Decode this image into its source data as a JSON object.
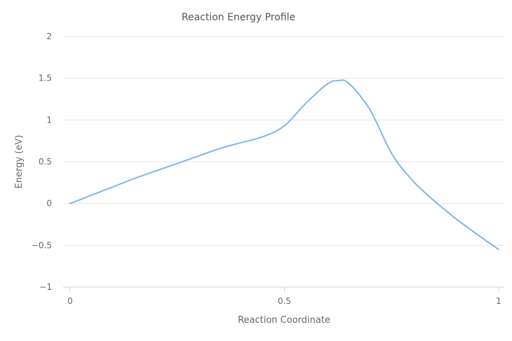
{
  "chart_data": {
    "type": "line",
    "title": "Reaction Energy Profile",
    "xlabel": "Reaction Coordinate",
    "ylabel": "Energy (eV)",
    "xlim": [
      0,
      1
    ],
    "ylim": [
      -1,
      2
    ],
    "x_ticks": [
      {
        "value": 0,
        "label": "0"
      },
      {
        "value": 0.5,
        "label": "0.5"
      },
      {
        "value": 1,
        "label": "1"
      }
    ],
    "y_ticks": [
      {
        "value": -1,
        "label": "−1"
      },
      {
        "value": -0.5,
        "label": "−0.5"
      },
      {
        "value": 0,
        "label": "0"
      },
      {
        "value": 0.5,
        "label": "0.5"
      },
      {
        "value": 1,
        "label": "1"
      },
      {
        "value": 1.5,
        "label": "1.5"
      },
      {
        "value": 2,
        "label": "2"
      }
    ],
    "grid": true,
    "legend": "none",
    "series": [
      {
        "color": "#7cb5ec",
        "x": [
          0,
          0.05,
          0.1,
          0.15,
          0.2,
          0.25,
          0.3,
          0.35,
          0.4,
          0.45,
          0.5,
          0.55,
          0.6,
          0.625,
          0.65,
          0.7,
          0.75,
          0.8,
          0.85,
          0.9,
          0.95,
          1.0
        ],
        "y": [
          0,
          0.1,
          0.2,
          0.3,
          0.39,
          0.48,
          0.57,
          0.66,
          0.73,
          0.8,
          0.93,
          1.2,
          1.43,
          1.47,
          1.44,
          1.12,
          0.6,
          0.27,
          0.03,
          -0.18,
          -0.37,
          -0.55
        ]
      }
    ]
  }
}
